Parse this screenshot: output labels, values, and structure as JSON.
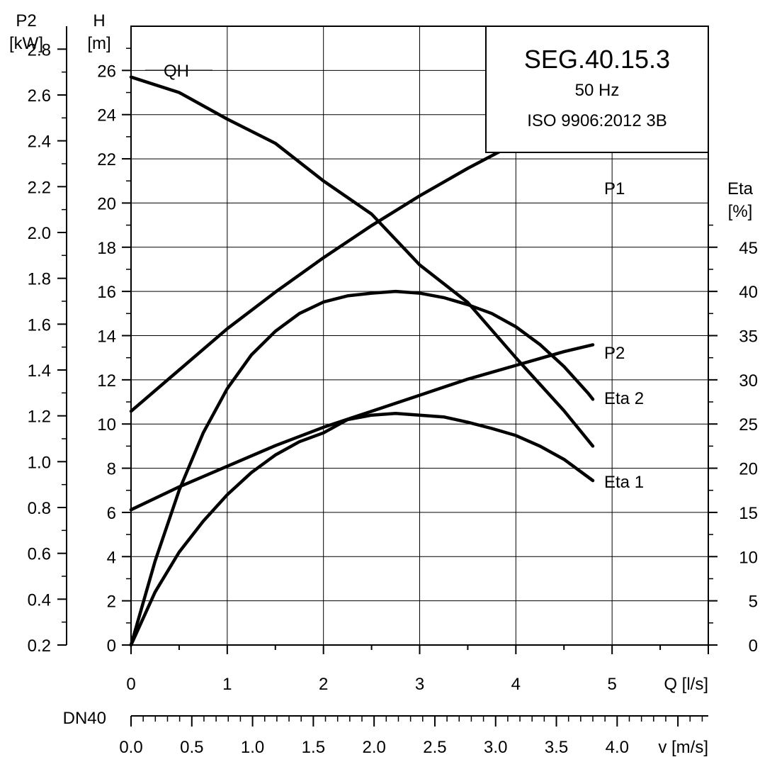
{
  "chart_data": {
    "type": "line",
    "title_box": {
      "model": "SEG.40.15.3",
      "frequency": "50 Hz",
      "standard": "ISO 9906:2012 3B"
    },
    "x_axis": {
      "label": "Q [l/s]",
      "min": 0,
      "max": 6,
      "ticks": [
        "0",
        "1",
        "2",
        "3",
        "4",
        "5"
      ]
    },
    "left_axis_h": {
      "label_line1": "H",
      "label_line2": "[m]",
      "min": 0,
      "max": 28,
      "ticks": [
        "0",
        "2",
        "4",
        "6",
        "8",
        "10",
        "12",
        "14",
        "16",
        "18",
        "20",
        "22",
        "24",
        "26"
      ]
    },
    "left_axis_p2": {
      "label_line1": "P2",
      "label_line2": "[kW]",
      "min": 0.2,
      "max": 2.9,
      "ticks": [
        "0.2",
        "0.4",
        "0.6",
        "0.8",
        "1.0",
        "1.2",
        "1.4",
        "1.6",
        "1.8",
        "2.0",
        "2.2",
        "2.4",
        "2.6",
        "2.8"
      ]
    },
    "right_axis_eta": {
      "label_line1": "Eta",
      "label_line2": "[%]",
      "min": 0,
      "max": 70,
      "ticks": [
        "0",
        "5",
        "10",
        "15",
        "20",
        "25",
        "30",
        "35",
        "40",
        "45"
      ]
    },
    "velocity_axis": {
      "name": "DN40",
      "label": "v [m/s]",
      "min": 0,
      "max": 4.75,
      "ticks": [
        "0.0",
        "0.5",
        "1.0",
        "1.5",
        "2.0",
        "2.5",
        "3.0",
        "3.5",
        "4.0"
      ]
    },
    "grid": true,
    "series": [
      {
        "name": "QH",
        "axis": "h",
        "x": [
          0,
          0.5,
          1.0,
          1.5,
          2.0,
          2.5,
          3.0,
          3.5,
          4.0,
          4.5,
          4.8
        ],
        "y": [
          25.7,
          25.0,
          23.8,
          22.7,
          21.0,
          19.5,
          17.2,
          15.5,
          13.0,
          10.6,
          9.0
        ]
      },
      {
        "name": "P1",
        "axis": "p2",
        "x": [
          0,
          0.5,
          1.0,
          1.5,
          2.0,
          2.5,
          3.0,
          3.5,
          4.0,
          4.5,
          4.8
        ],
        "y": [
          1.22,
          1.4,
          1.58,
          1.74,
          1.89,
          2.03,
          2.16,
          2.28,
          2.39,
          2.49,
          2.54
        ]
      },
      {
        "name": "P2",
        "axis": "p2",
        "x": [
          0,
          0.5,
          1.0,
          1.5,
          2.0,
          2.5,
          3.0,
          3.5,
          4.0,
          4.5,
          4.8
        ],
        "y": [
          0.79,
          0.89,
          0.98,
          1.07,
          1.15,
          1.22,
          1.29,
          1.36,
          1.42,
          1.48,
          1.51
        ]
      },
      {
        "name": "Eta 2",
        "axis": "eta",
        "x": [
          0,
          0.25,
          0.5,
          0.75,
          1.0,
          1.25,
          1.5,
          1.75,
          2.0,
          2.25,
          2.5,
          2.75,
          3.0,
          3.25,
          3.5,
          3.75,
          4.0,
          4.25,
          4.5,
          4.75,
          4.8
        ],
        "y": [
          0,
          9.5,
          17.5,
          24.0,
          29.0,
          32.8,
          35.5,
          37.5,
          38.8,
          39.5,
          39.8,
          40.0,
          39.8,
          39.3,
          38.5,
          37.5,
          36.0,
          34.0,
          31.5,
          28.5,
          27.8
        ]
      },
      {
        "name": "Eta 1",
        "axis": "eta",
        "x": [
          0,
          0.25,
          0.5,
          0.75,
          1.0,
          1.25,
          1.5,
          1.75,
          2.0,
          2.25,
          2.5,
          2.75,
          3.0,
          3.25,
          3.5,
          3.75,
          4.0,
          4.25,
          4.5,
          4.75,
          4.8
        ],
        "y": [
          0,
          6.0,
          10.5,
          14.0,
          17.0,
          19.5,
          21.5,
          23.0,
          24.0,
          25.5,
          26.0,
          26.2,
          26.0,
          25.8,
          25.2,
          24.5,
          23.7,
          22.5,
          21.0,
          19.0,
          18.6
        ]
      }
    ]
  }
}
